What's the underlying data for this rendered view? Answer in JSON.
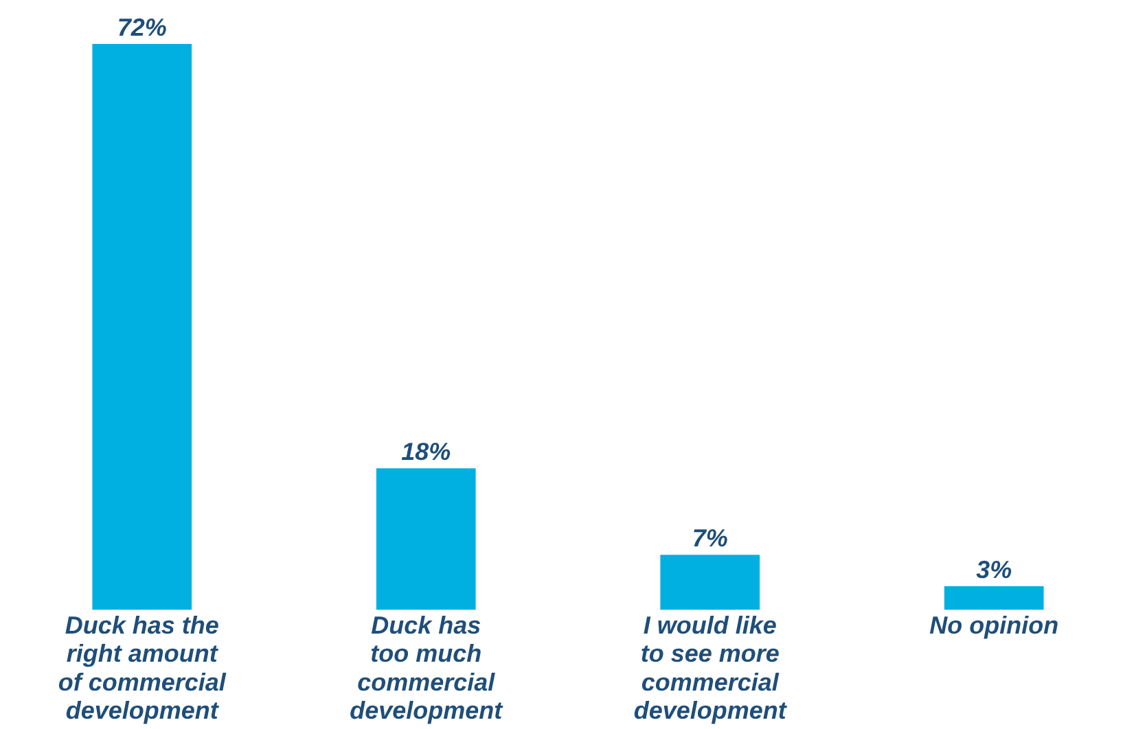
{
  "chart_data": {
    "type": "bar",
    "categories": [
      "Duck has the\nright amount\nof commercial\ndevelopment",
      "Duck has\ntoo much\ncommercial\ndevelopment",
      "I would like\nto see more\ncommercial\ndevelopment",
      "No opinion"
    ],
    "values": [
      72,
      18,
      7,
      3
    ],
    "value_labels": [
      "72%",
      "18%",
      "7%",
      "3%"
    ],
    "color": "#00b0e0",
    "grid": false,
    "legend": false
  }
}
